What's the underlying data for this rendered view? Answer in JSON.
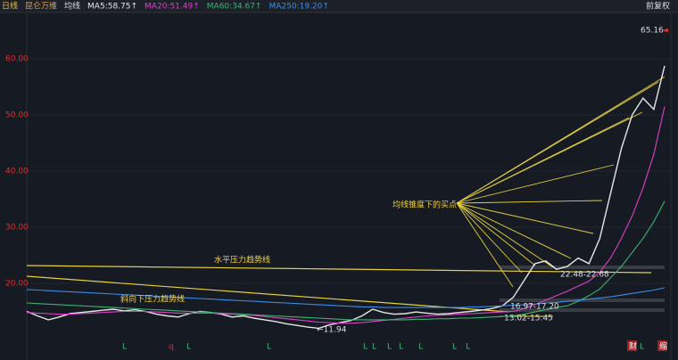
{
  "chart_data": {
    "type": "line",
    "header": [
      "日线",
      "昆仑万维",
      "均线"
    ],
    "adjust_label": "前复权",
    "categories": [
      null,
      null,
      null,
      null,
      null,
      null,
      null,
      null,
      null,
      null,
      null,
      null,
      null,
      null,
      null,
      null,
      null,
      null,
      null,
      null,
      null,
      null,
      null,
      null,
      null,
      null,
      null,
      null,
      null,
      null,
      null,
      null,
      null,
      null,
      null,
      null,
      null,
      null,
      null,
      null,
      null,
      null,
      null,
      null,
      null,
      null,
      null,
      null,
      null,
      null,
      null,
      null,
      null,
      null,
      null,
      null,
      null,
      null,
      null,
      null
    ],
    "series": [
      {
        "name": "MA5:58.75↑",
        "color": "#e6e6e6",
        "values": [
          15.0,
          14.2,
          13.5,
          14.0,
          14.6,
          14.8,
          15.0,
          15.2,
          15.4,
          15.1,
          15.3,
          15.0,
          14.5,
          14.2,
          14.0,
          14.6,
          15.0,
          14.8,
          14.5,
          14.0,
          14.2,
          13.8,
          13.5,
          13.2,
          12.8,
          12.5,
          12.2,
          12.0,
          12.6,
          13.0,
          13.4,
          14.2,
          15.4,
          14.8,
          14.5,
          14.6,
          14.9,
          14.7,
          14.5,
          14.6,
          14.8,
          15.0,
          15.2,
          15.5,
          16.0,
          17.5,
          20.5,
          23.5,
          24.0,
          22.5,
          23.0,
          24.5,
          23.5,
          28.0,
          36.0,
          44.0,
          50.0,
          53.0,
          51.0,
          58.75
        ]
      },
      {
        "name": "MA20:51.49↑",
        "color": "#e040c8",
        "values": [
          14.8,
          14.7,
          14.6,
          14.5,
          14.5,
          14.6,
          14.7,
          14.8,
          14.9,
          15.0,
          15.0,
          15.0,
          14.9,
          14.8,
          14.7,
          14.7,
          14.7,
          14.7,
          14.6,
          14.5,
          14.4,
          14.3,
          14.1,
          13.9,
          13.7,
          13.5,
          13.3,
          13.1,
          13.0,
          12.9,
          12.9,
          13.0,
          13.2,
          13.4,
          13.6,
          13.8,
          14.0,
          14.2,
          14.3,
          14.4,
          14.5,
          14.6,
          14.7,
          14.8,
          14.9,
          15.0,
          15.5,
          16.2,
          17.0,
          17.8,
          18.6,
          19.5,
          20.4,
          22.0,
          24.5,
          28.0,
          32.0,
          37.0,
          43.0,
          51.49
        ]
      },
      {
        "name": "MA60:34.67↑",
        "color": "#3cb371",
        "values": [
          16.5,
          16.4,
          16.3,
          16.2,
          16.1,
          16.0,
          15.9,
          15.8,
          15.7,
          15.6,
          15.5,
          15.4,
          15.3,
          15.2,
          15.1,
          15.0,
          14.9,
          14.8,
          14.7,
          14.6,
          14.5,
          14.4,
          14.3,
          14.2,
          14.1,
          14.0,
          13.9,
          13.8,
          13.7,
          13.6,
          13.5,
          13.5,
          13.5,
          13.5,
          13.5,
          13.5,
          13.6,
          13.6,
          13.7,
          13.7,
          13.8,
          13.8,
          13.9,
          14.0,
          14.1,
          14.2,
          14.5,
          14.9,
          15.3,
          15.7,
          16.0,
          16.8,
          17.8,
          19.0,
          21.0,
          23.0,
          25.5,
          28.0,
          31.0,
          34.67
        ]
      },
      {
        "name": "MA250:19.20↑",
        "color": "#3c8ce6",
        "values": [
          18.9,
          18.8,
          18.7,
          18.6,
          18.5,
          18.4,
          18.3,
          18.2,
          18.1,
          18.0,
          17.9,
          17.8,
          17.7,
          17.6,
          17.5,
          17.4,
          17.3,
          17.2,
          17.1,
          17.0,
          16.9,
          16.8,
          16.7,
          16.6,
          16.5,
          16.4,
          16.3,
          16.2,
          16.1,
          16.0,
          15.9,
          15.8,
          15.8,
          15.7,
          15.7,
          15.7,
          15.7,
          15.7,
          15.7,
          15.7,
          15.7,
          15.8,
          15.8,
          15.9,
          16.0,
          16.1,
          16.2,
          16.3,
          16.5,
          16.6,
          16.8,
          17.0,
          17.2,
          17.4,
          17.6,
          17.9,
          18.2,
          18.5,
          18.8,
          19.2
        ]
      }
    ],
    "ylim": [
      10.95,
      67.3
    ],
    "yticks": [
      {
        "value": 20,
        "label": "20.00"
      },
      {
        "value": 30,
        "label": "30.00"
      },
      {
        "value": 40,
        "label": "40.00"
      },
      {
        "value": 50,
        "label": "50.00"
      },
      {
        "value": 60,
        "label": "60.00"
      }
    ],
    "annotations": [
      "65.16",
      "均线锥度下的买点",
      "水平压力趋势线",
      "斜向下压力趋势线",
      "22.48-22.68",
      "16.97-17.20",
      "13.02-15.45",
      "←11.94"
    ],
    "bottom_markers": [
      "L",
      "q",
      "L",
      "L",
      "L",
      "L",
      "L",
      "L",
      "L",
      "L",
      "L",
      "财",
      "L",
      "缩"
    ]
  }
}
